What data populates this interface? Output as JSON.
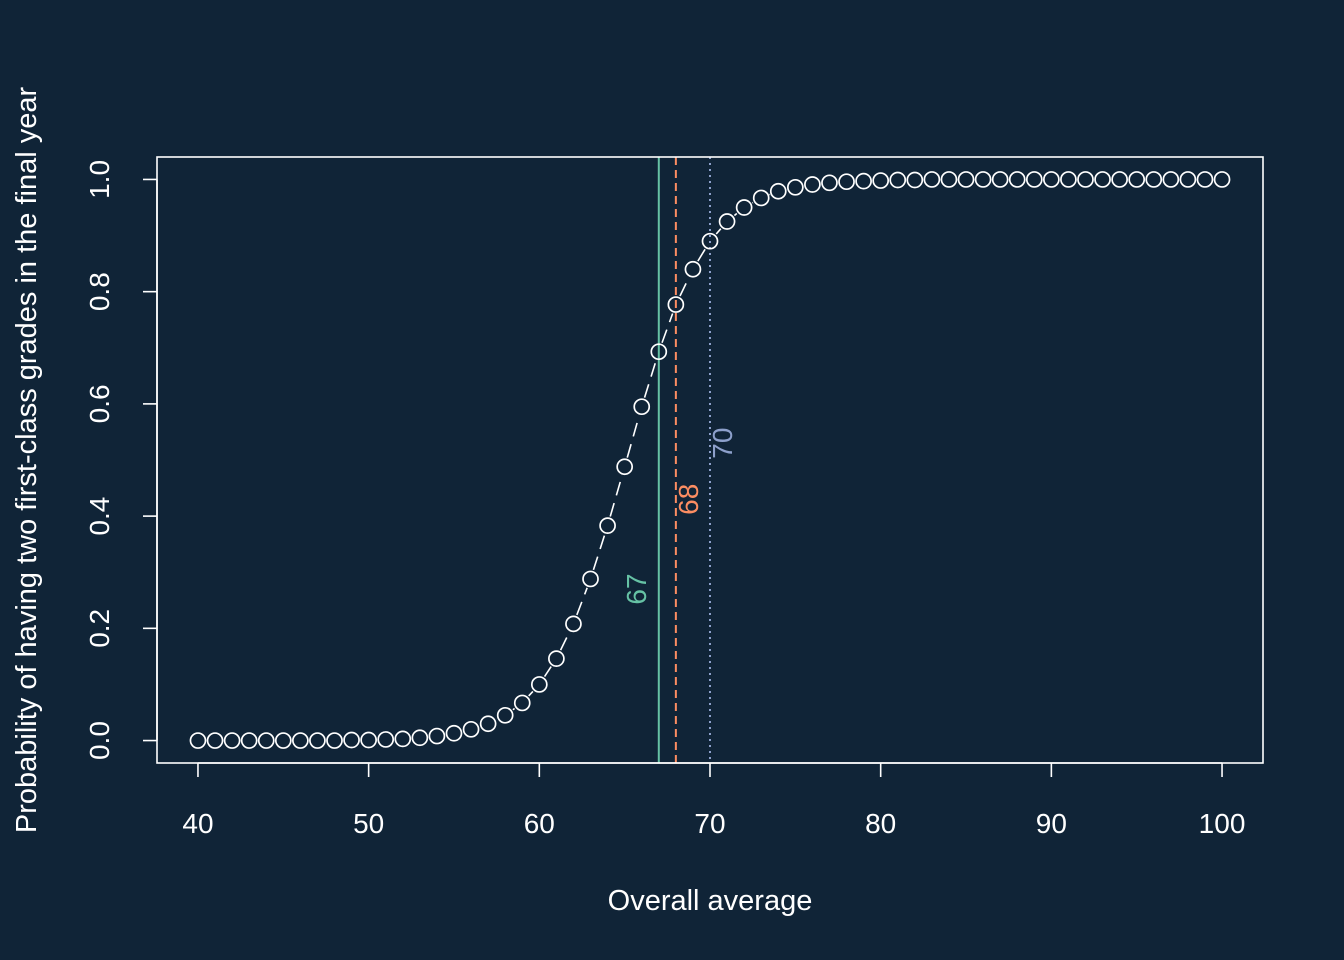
{
  "colors": {
    "background": "#102437",
    "foreground": "#ffffff",
    "ref_67": "#66c2a5",
    "ref_68": "#fc8d62",
    "ref_70": "#8da0cb"
  },
  "chart_data": {
    "type": "scatter",
    "title": "",
    "xlabel": "Overall average",
    "ylabel": "Probability of having two first-class grades in the final year",
    "xlim": [
      37.6,
      102.4
    ],
    "ylim": [
      -0.04,
      1.04
    ],
    "xticks": [
      40,
      50,
      60,
      70,
      80,
      90,
      100
    ],
    "yticks": [
      0.0,
      0.2,
      0.4,
      0.6,
      0.8,
      1.0
    ],
    "xtick_labels": [
      "40",
      "50",
      "60",
      "70",
      "80",
      "90",
      "100"
    ],
    "ytick_labels": [
      "0.0",
      "0.2",
      "0.4",
      "0.6",
      "0.8",
      "1.0"
    ],
    "grid": false,
    "point_style": "open-circle",
    "connector": "dashed-line",
    "series": [
      {
        "x": [
          40,
          41,
          42,
          43,
          44,
          45,
          46,
          47,
          48,
          49,
          50,
          51,
          52,
          53,
          54,
          55,
          56,
          57,
          58,
          59,
          60,
          61,
          62,
          63,
          64,
          65,
          66,
          67,
          68,
          69,
          70,
          71,
          72,
          73,
          74,
          75,
          76,
          77,
          78,
          79,
          80,
          81,
          82,
          83,
          84,
          85,
          86,
          87,
          88,
          89,
          90,
          91,
          92,
          93,
          94,
          95,
          96,
          97,
          98,
          99,
          100
        ],
        "y": [
          0.0,
          0.0,
          0.0,
          0.0,
          0.0,
          0.0,
          0.0,
          0.0,
          0.0,
          0.001,
          0.001,
          0.002,
          0.003,
          0.005,
          0.008,
          0.013,
          0.02,
          0.03,
          0.045,
          0.067,
          0.1,
          0.146,
          0.208,
          0.288,
          0.383,
          0.488,
          0.595,
          0.693,
          0.777,
          0.84,
          0.89,
          0.925,
          0.95,
          0.967,
          0.979,
          0.986,
          0.991,
          0.994,
          0.996,
          0.997,
          0.998,
          0.999,
          0.999,
          1.0,
          1.0,
          1.0,
          1.0,
          1.0,
          1.0,
          1.0,
          1.0,
          1.0,
          1.0,
          1.0,
          1.0,
          1.0,
          1.0,
          1.0,
          1.0,
          1.0,
          1.0
        ]
      }
    ],
    "reference_lines": [
      {
        "x": 67,
        "label": "67",
        "style": "solid",
        "color": "#66c2a5",
        "label_y": 0.27
      },
      {
        "x": 68,
        "label": "68",
        "style": "dashed",
        "color": "#fc8d62",
        "label_y": 0.43
      },
      {
        "x": 70,
        "label": "70",
        "style": "dotted",
        "color": "#8da0cb",
        "label_y": 0.53
      }
    ]
  }
}
